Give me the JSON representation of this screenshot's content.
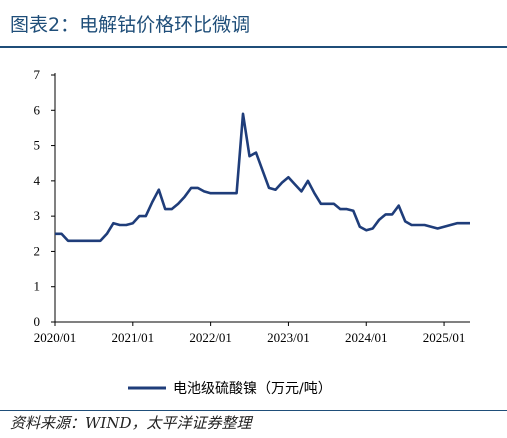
{
  "header": {
    "title": "图表2：电解钴价格环比微调"
  },
  "footer": {
    "source": "资料来源：WIND，太平洋证券整理"
  },
  "colors": {
    "series": "#1f3d7a",
    "accent": "#1f4e79",
    "axis": "#000000"
  },
  "chart_data": {
    "type": "line",
    "title": "",
    "xlabel": "",
    "ylabel": "",
    "ylim": [
      0,
      7
    ],
    "yticks": [
      0,
      1,
      2,
      3,
      4,
      5,
      6,
      7
    ],
    "xticks": [
      "2020/01",
      "2021/01",
      "2022/01",
      "2023/01",
      "2024/01",
      "2025/01"
    ],
    "grid": false,
    "legend_position": "bottom",
    "series": [
      {
        "name": "电池级硫酸镍（万元/吨）",
        "points": [
          [
            "2020/01",
            2.5
          ],
          [
            "2020/02",
            2.5
          ],
          [
            "2020/03",
            2.3
          ],
          [
            "2020/04",
            2.3
          ],
          [
            "2020/05",
            2.3
          ],
          [
            "2020/06",
            2.3
          ],
          [
            "2020/07",
            2.3
          ],
          [
            "2020/08",
            2.3
          ],
          [
            "2020/09",
            2.5
          ],
          [
            "2020/10",
            2.8
          ],
          [
            "2020/11",
            2.75
          ],
          [
            "2020/12",
            2.75
          ],
          [
            "2021/01",
            2.8
          ],
          [
            "2021/02",
            3.0
          ],
          [
            "2021/03",
            3.0
          ],
          [
            "2021/04",
            3.4
          ],
          [
            "2021/05",
            3.75
          ],
          [
            "2021/06",
            3.2
          ],
          [
            "2021/07",
            3.2
          ],
          [
            "2021/08",
            3.35
          ],
          [
            "2021/09",
            3.55
          ],
          [
            "2021/10",
            3.8
          ],
          [
            "2021/11",
            3.8
          ],
          [
            "2021/12",
            3.7
          ],
          [
            "2022/01",
            3.65
          ],
          [
            "2022/02",
            3.65
          ],
          [
            "2022/03",
            3.65
          ],
          [
            "2022/04",
            3.65
          ],
          [
            "2022/05",
            3.65
          ],
          [
            "2022/06",
            5.9
          ],
          [
            "2022/07",
            4.7
          ],
          [
            "2022/08",
            4.8
          ],
          [
            "2022/09",
            4.3
          ],
          [
            "2022/10",
            3.8
          ],
          [
            "2022/11",
            3.75
          ],
          [
            "2022/12",
            3.95
          ],
          [
            "2023/01",
            4.1
          ],
          [
            "2023/02",
            3.9
          ],
          [
            "2023/03",
            3.7
          ],
          [
            "2023/04",
            4.0
          ],
          [
            "2023/05",
            3.65
          ],
          [
            "2023/06",
            3.35
          ],
          [
            "2023/07",
            3.35
          ],
          [
            "2023/08",
            3.35
          ],
          [
            "2023/09",
            3.2
          ],
          [
            "2023/10",
            3.2
          ],
          [
            "2023/11",
            3.15
          ],
          [
            "2023/12",
            2.7
          ],
          [
            "2024/01",
            2.6
          ],
          [
            "2024/02",
            2.65
          ],
          [
            "2024/03",
            2.9
          ],
          [
            "2024/04",
            3.05
          ],
          [
            "2024/05",
            3.05
          ],
          [
            "2024/06",
            3.3
          ],
          [
            "2024/07",
            2.85
          ],
          [
            "2024/08",
            2.75
          ],
          [
            "2024/09",
            2.75
          ],
          [
            "2024/10",
            2.75
          ],
          [
            "2024/11",
            2.7
          ],
          [
            "2024/12",
            2.65
          ],
          [
            "2025/01",
            2.7
          ],
          [
            "2025/02",
            2.75
          ],
          [
            "2025/03",
            2.8
          ],
          [
            "2025/04",
            2.8
          ],
          [
            "2025/05",
            2.8
          ]
        ]
      }
    ]
  }
}
